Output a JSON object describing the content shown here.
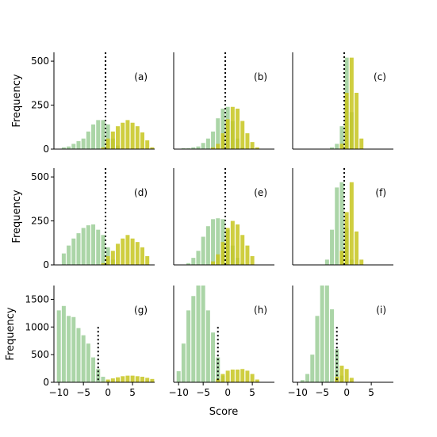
{
  "chart_data": {
    "type": "bar",
    "xlabel": "Score",
    "ylabel": "Frequency",
    "colors": {
      "green": "#a6d3a2",
      "yellow": "#c7c51e",
      "threshold": "#000000"
    },
    "panels": [
      {
        "label": "(a)",
        "row": 0,
        "col": 0,
        "ylim": [
          0,
          550
        ],
        "yticks": [
          0,
          250,
          500
        ],
        "threshold": -0.5,
        "threshold_top": 550,
        "green": [
          [
            -9,
            10
          ],
          [
            -8,
            15
          ],
          [
            -7,
            30
          ],
          [
            -6,
            45
          ],
          [
            -5,
            60
          ],
          [
            -4,
            100
          ],
          [
            -3,
            140
          ],
          [
            -2,
            165
          ],
          [
            -1,
            165
          ],
          [
            0,
            140
          ],
          [
            1,
            60
          ],
          [
            2,
            20
          ]
        ],
        "yellow": [
          [
            -1,
            10
          ],
          [
            0,
            60
          ],
          [
            1,
            100
          ],
          [
            2,
            130
          ],
          [
            3,
            150
          ],
          [
            4,
            165
          ],
          [
            5,
            150
          ],
          [
            6,
            130
          ],
          [
            7,
            95
          ],
          [
            8,
            50
          ],
          [
            9,
            10
          ]
        ]
      },
      {
        "label": "(b)",
        "row": 0,
        "col": 1,
        "ylim": [
          0,
          550
        ],
        "yticks": [
          0,
          250,
          500
        ],
        "threshold": -0.5,
        "threshold_top": 550,
        "green": [
          [
            -9,
            5
          ],
          [
            -8,
            5
          ],
          [
            -7,
            10
          ],
          [
            -6,
            15
          ],
          [
            -5,
            35
          ],
          [
            -4,
            60
          ],
          [
            -3,
            100
          ],
          [
            -2,
            175
          ],
          [
            -1,
            230
          ],
          [
            0,
            240
          ],
          [
            1,
            160
          ],
          [
            2,
            60
          ],
          [
            3,
            10
          ]
        ],
        "yellow": [
          [
            -3,
            10
          ],
          [
            -2,
            30
          ],
          [
            -1,
            90
          ],
          [
            0,
            170
          ],
          [
            1,
            240
          ],
          [
            2,
            230
          ],
          [
            3,
            160
          ],
          [
            4,
            90
          ],
          [
            5,
            40
          ],
          [
            6,
            10
          ]
        ]
      },
      {
        "label": "(c)",
        "row": 0,
        "col": 2,
        "ylim": [
          0,
          550
        ],
        "yticks": [
          0,
          250,
          500
        ],
        "threshold": -0.5,
        "threshold_top": 550,
        "green": [
          [
            -3,
            10
          ],
          [
            -2,
            30
          ],
          [
            -1,
            130
          ],
          [
            0,
            520
          ],
          [
            1,
            210
          ]
        ],
        "yellow": [
          [
            -1,
            30
          ],
          [
            0,
            320
          ],
          [
            1,
            520
          ],
          [
            2,
            320
          ],
          [
            3,
            60
          ]
        ]
      },
      {
        "label": "(d)",
        "row": 1,
        "col": 0,
        "ylim": [
          0,
          550
        ],
        "yticks": [
          0,
          250,
          500
        ],
        "threshold": -0.5,
        "threshold_top": 550,
        "green": [
          [
            -9,
            65
          ],
          [
            -8,
            110
          ],
          [
            -7,
            150
          ],
          [
            -6,
            180
          ],
          [
            -5,
            210
          ],
          [
            -4,
            225
          ],
          [
            -3,
            230
          ],
          [
            -2,
            200
          ],
          [
            -1,
            170
          ],
          [
            0,
            100
          ],
          [
            1,
            30
          ]
        ],
        "yellow": [
          [
            -1,
            10
          ],
          [
            0,
            50
          ],
          [
            1,
            80
          ],
          [
            2,
            120
          ],
          [
            3,
            150
          ],
          [
            4,
            170
          ],
          [
            5,
            150
          ],
          [
            6,
            130
          ],
          [
            7,
            100
          ],
          [
            8,
            50
          ]
        ]
      },
      {
        "label": "(e)",
        "row": 1,
        "col": 1,
        "ylim": [
          0,
          550
        ],
        "yticks": [
          0,
          250,
          500
        ],
        "threshold": -0.5,
        "threshold_top": 550,
        "green": [
          [
            -8,
            10
          ],
          [
            -7,
            40
          ],
          [
            -6,
            80
          ],
          [
            -5,
            160
          ],
          [
            -4,
            220
          ],
          [
            -3,
            260
          ],
          [
            -2,
            265
          ],
          [
            -1,
            260
          ],
          [
            0,
            200
          ],
          [
            1,
            110
          ],
          [
            2,
            40
          ],
          [
            3,
            10
          ]
        ],
        "yellow": [
          [
            -3,
            20
          ],
          [
            -2,
            60
          ],
          [
            -1,
            130
          ],
          [
            0,
            210
          ],
          [
            1,
            250
          ],
          [
            2,
            230
          ],
          [
            3,
            170
          ],
          [
            4,
            110
          ],
          [
            5,
            50
          ]
        ]
      },
      {
        "label": "(f)",
        "row": 1,
        "col": 2,
        "ylim": [
          0,
          550
        ],
        "yticks": [
          0,
          250,
          500
        ],
        "threshold": -0.5,
        "threshold_top": 550,
        "green": [
          [
            -4,
            30
          ],
          [
            -3,
            200
          ],
          [
            -2,
            440
          ],
          [
            -1,
            470
          ],
          [
            0,
            210
          ],
          [
            1,
            30
          ]
        ],
        "yellow": [
          [
            -1,
            80
          ],
          [
            0,
            300
          ],
          [
            1,
            470
          ],
          [
            2,
            190
          ],
          [
            3,
            30
          ]
        ]
      },
      {
        "label": "(g)",
        "row": 2,
        "col": 0,
        "ylim": [
          0,
          1750
        ],
        "yticks": [
          0,
          500,
          1000,
          1500
        ],
        "threshold": -2,
        "threshold_top": 1000,
        "green": [
          [
            -10,
            1300
          ],
          [
            -9,
            1380
          ],
          [
            -8,
            1200
          ],
          [
            -7,
            1180
          ],
          [
            -6,
            980
          ],
          [
            -5,
            850
          ],
          [
            -4,
            700
          ],
          [
            -3,
            450
          ],
          [
            -2,
            240
          ],
          [
            -1,
            100
          ],
          [
            0,
            30
          ]
        ],
        "yellow": [
          [
            -1,
            10
          ],
          [
            0,
            50
          ],
          [
            1,
            70
          ],
          [
            2,
            90
          ],
          [
            3,
            110
          ],
          [
            4,
            120
          ],
          [
            5,
            120
          ],
          [
            6,
            110
          ],
          [
            7,
            100
          ],
          [
            8,
            80
          ],
          [
            9,
            60
          ]
        ]
      },
      {
        "label": "(h)",
        "row": 2,
        "col": 1,
        "ylim": [
          0,
          1750
        ],
        "yticks": [
          0,
          500,
          1000,
          1500
        ],
        "threshold": -2,
        "threshold_top": 1000,
        "green": [
          [
            -10,
            200
          ],
          [
            -9,
            700
          ],
          [
            -8,
            1300
          ],
          [
            -7,
            1560
          ],
          [
            -6,
            1760
          ],
          [
            -5,
            1760
          ],
          [
            -4,
            1300
          ],
          [
            -3,
            900
          ],
          [
            -2,
            450
          ],
          [
            -1,
            120
          ]
        ],
        "yellow": [
          [
            -2,
            60
          ],
          [
            -1,
            150
          ],
          [
            0,
            210
          ],
          [
            1,
            230
          ],
          [
            2,
            230
          ],
          [
            3,
            240
          ],
          [
            4,
            210
          ],
          [
            5,
            150
          ],
          [
            6,
            50
          ]
        ]
      },
      {
        "label": "(i)",
        "row": 2,
        "col": 2,
        "ylim": [
          0,
          1750
        ],
        "yticks": [
          0,
          500,
          1000,
          1500
        ],
        "threshold": -2,
        "threshold_top": 1000,
        "green": [
          [
            -9,
            40
          ],
          [
            -8,
            150
          ],
          [
            -7,
            500
          ],
          [
            -6,
            1200
          ],
          [
            -5,
            1760
          ],
          [
            -4,
            1760
          ],
          [
            -3,
            1320
          ],
          [
            -2,
            600
          ],
          [
            -1,
            120
          ]
        ],
        "yellow": [
          [
            -2,
            100
          ],
          [
            -1,
            300
          ],
          [
            0,
            240
          ],
          [
            1,
            80
          ]
        ]
      }
    ],
    "xlim": [
      -11,
      9.5
    ],
    "xticks": [
      -10,
      -5,
      0,
      5
    ],
    "xtick_labels": [
      "−10",
      "−5",
      "0",
      "5"
    ],
    "grid": false,
    "legend": "none"
  }
}
